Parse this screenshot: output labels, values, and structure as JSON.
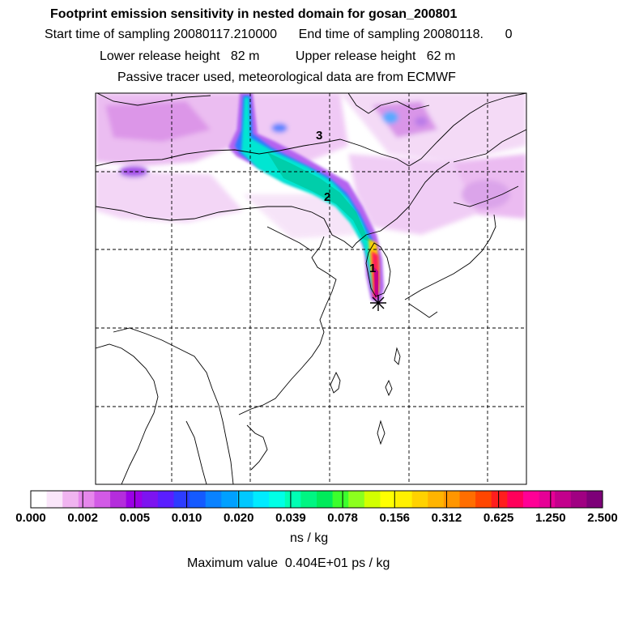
{
  "header": {
    "title": "Footprint emission sensitivity in nested domain for gosan_200801",
    "sampling_line": "Start time of sampling 20080117.210000      End time of sampling 20080118.      0",
    "release_line": "Lower release height   82 m          Upper release height   62 m",
    "tracer_line": "Passive tracer used, meteorological data are from ECMWF"
  },
  "map": {
    "day_labels": [
      "3",
      "2",
      "1"
    ],
    "receptor_marker": "star-receptor"
  },
  "colorbar": {
    "tick_labels": [
      "0.000",
      "0.002",
      "0.005",
      "0.010",
      "0.020",
      "0.039",
      "0.078",
      "0.156",
      "0.312",
      "0.625",
      "1.250",
      "2.500"
    ],
    "colors": [
      "#ffffff",
      "#fae6fa",
      "#f0b4f0",
      "#e687ec",
      "#d25ae6",
      "#b42ddc",
      "#9b00e6",
      "#7d14f0",
      "#5a1eff",
      "#2d3cff",
      "#145aff",
      "#0a82ff",
      "#00a0ff",
      "#00c8ff",
      "#00ebff",
      "#00ffe6",
      "#00ffb4",
      "#00f582",
      "#00eb5a",
      "#3cff2d",
      "#8cff1e",
      "#d2ff00",
      "#ffff00",
      "#fff000",
      "#ffd200",
      "#ffb400",
      "#ff9600",
      "#ff6e00",
      "#ff4600",
      "#ff1e1e",
      "#ff005a",
      "#ff0096",
      "#e60096",
      "#c3008c",
      "#a00082",
      "#7d0078"
    ],
    "units": "ns / kg",
    "max_value": "Maximum value  0.404E+01 ps / kg"
  }
}
